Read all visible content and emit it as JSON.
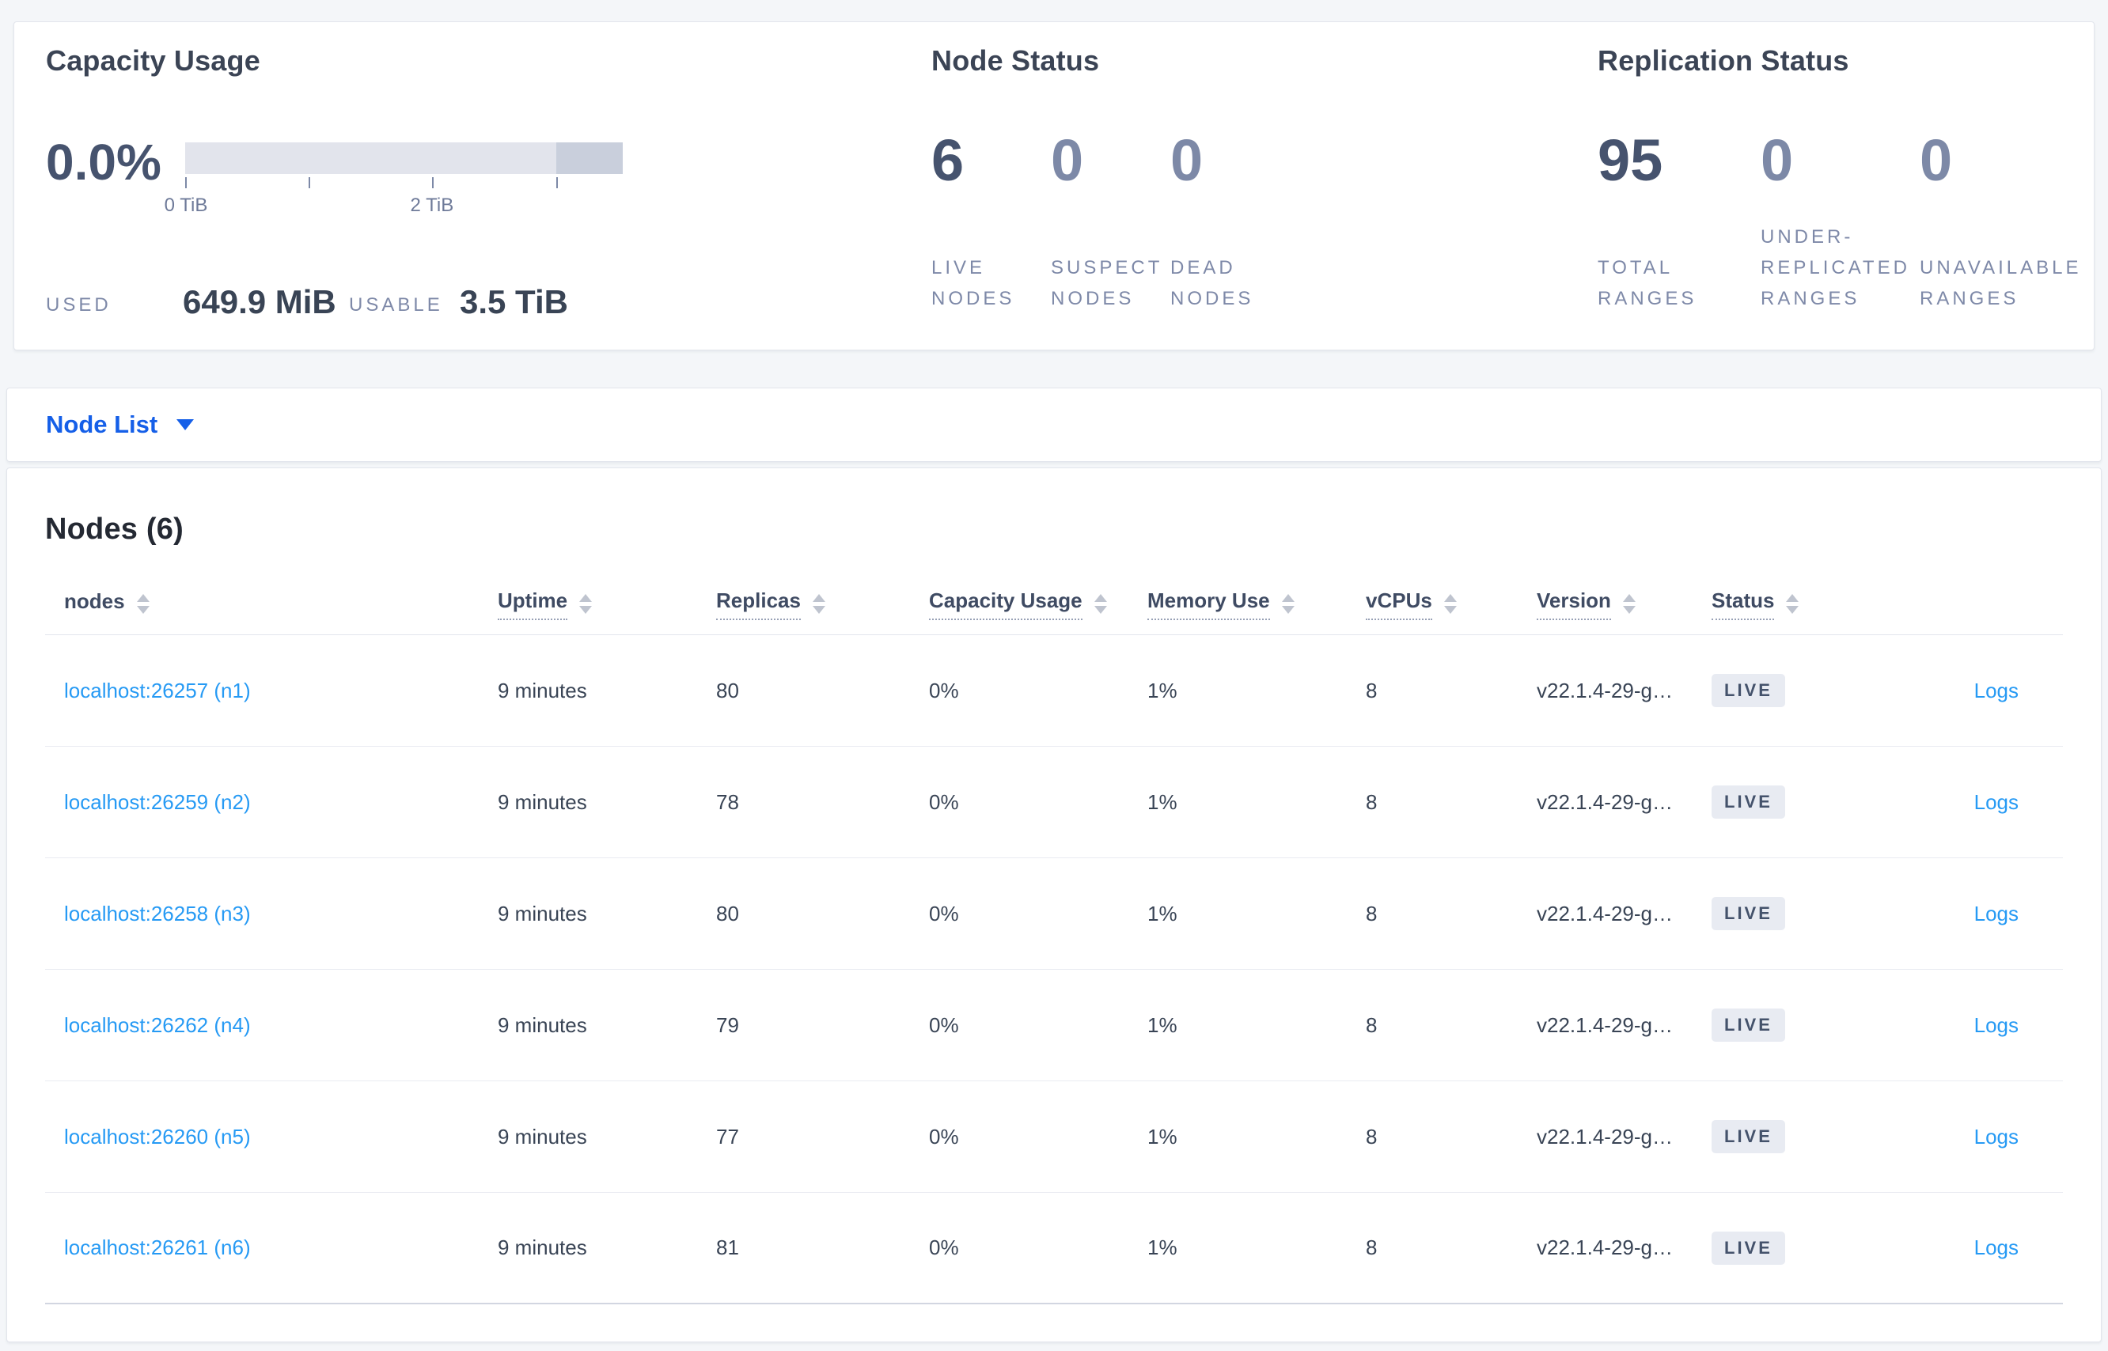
{
  "theme": {
    "accent_blue": "#155fe8",
    "link_blue": "#269af4",
    "badge_bg": "#e8ebf2",
    "badge_text": "#44526b",
    "bar_light": "#e2e4ec",
    "bar_dark": "#c9cfdc",
    "page_bg": "#f4f6f9"
  },
  "summary": {
    "capacity": {
      "title": "Capacity Usage",
      "percent": "0.0%",
      "axis_range": "0 to 3.5 TiB",
      "tick_labels": [
        "0 TiB",
        "2 TiB"
      ],
      "used_label": "USED",
      "used_value": "649.9 MiB",
      "usable_label": "USABLE",
      "usable_value": "3.5 TiB"
    },
    "node_status": {
      "title": "Node Status",
      "stats": [
        {
          "value": "6",
          "label": "LIVE\nNODES",
          "emphasis": true
        },
        {
          "value": "0",
          "label": "SUSPECT\nNODES",
          "emphasis": false
        },
        {
          "value": "0",
          "label": "DEAD\nNODES",
          "emphasis": false
        }
      ]
    },
    "replication": {
      "title": "Replication Status",
      "stats": [
        {
          "value": "95",
          "label": "TOTAL\nRANGES",
          "emphasis": true
        },
        {
          "value": "0",
          "label": "UNDER-\nREPLICATED\nRANGES",
          "emphasis": false
        },
        {
          "value": "0",
          "label": "UNAVAILABLE\nRANGES",
          "emphasis": false
        }
      ]
    }
  },
  "view_selector": {
    "label": "Node List"
  },
  "nodes_panel": {
    "title": "Nodes (6)",
    "columns": [
      {
        "label": "nodes",
        "dotted": false
      },
      {
        "label": "Uptime",
        "dotted": true
      },
      {
        "label": "Replicas",
        "dotted": true
      },
      {
        "label": "Capacity Usage",
        "dotted": true
      },
      {
        "label": "Memory Use",
        "dotted": true
      },
      {
        "label": "vCPUs",
        "dotted": true
      },
      {
        "label": "Version",
        "dotted": true
      },
      {
        "label": "Status",
        "dotted": true
      }
    ],
    "rows": [
      {
        "address": "localhost:26257 (n1)",
        "uptime": "9 minutes",
        "replicas": "80",
        "capacity": "0%",
        "memory": "1%",
        "vcpus": "8",
        "version": "v22.1.4-29-g…",
        "status": "LIVE",
        "logs": "Logs"
      },
      {
        "address": "localhost:26259 (n2)",
        "uptime": "9 minutes",
        "replicas": "78",
        "capacity": "0%",
        "memory": "1%",
        "vcpus": "8",
        "version": "v22.1.4-29-g…",
        "status": "LIVE",
        "logs": "Logs"
      },
      {
        "address": "localhost:26258 (n3)",
        "uptime": "9 minutes",
        "replicas": "80",
        "capacity": "0%",
        "memory": "1%",
        "vcpus": "8",
        "version": "v22.1.4-29-g…",
        "status": "LIVE",
        "logs": "Logs"
      },
      {
        "address": "localhost:26262 (n4)",
        "uptime": "9 minutes",
        "replicas": "79",
        "capacity": "0%",
        "memory": "1%",
        "vcpus": "8",
        "version": "v22.1.4-29-g…",
        "status": "LIVE",
        "logs": "Logs"
      },
      {
        "address": "localhost:26260 (n5)",
        "uptime": "9 minutes",
        "replicas": "77",
        "capacity": "0%",
        "memory": "1%",
        "vcpus": "8",
        "version": "v22.1.4-29-g…",
        "status": "LIVE",
        "logs": "Logs"
      },
      {
        "address": "localhost:26261 (n6)",
        "uptime": "9 minutes",
        "replicas": "81",
        "capacity": "0%",
        "memory": "1%",
        "vcpus": "8",
        "version": "v22.1.4-29-g…",
        "status": "LIVE",
        "logs": "Logs"
      }
    ]
  }
}
